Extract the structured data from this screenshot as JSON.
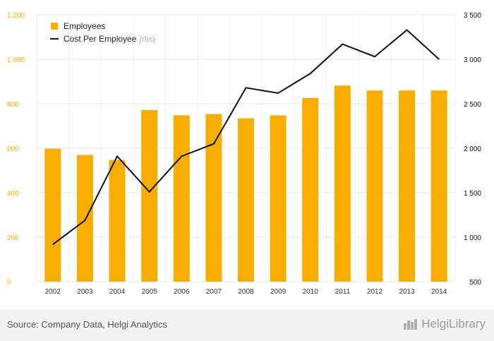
{
  "chart_data": {
    "type": "bar+line",
    "categories": [
      "2002",
      "2003",
      "2004",
      "2005",
      "2006",
      "2007",
      "2008",
      "2009",
      "2010",
      "2011",
      "2012",
      "2013",
      "2014"
    ],
    "series": [
      {
        "name": "Employees",
        "type": "bar",
        "axis": "left",
        "color": "#f8ae00",
        "values": [
          598,
          570,
          547,
          772,
          748,
          754,
          735,
          748,
          826,
          882,
          860,
          860,
          860
        ]
      },
      {
        "name": "Cost Per Employee",
        "name_suffix": "(rhs)",
        "type": "line",
        "axis": "right",
        "color": "#111111",
        "values": [
          918,
          1190,
          1910,
          1510,
          1910,
          2050,
          2680,
          2620,
          2840,
          3170,
          3030,
          3330,
          3000
        ]
      }
    ],
    "y_left": {
      "min": 0,
      "max": 1200,
      "ticks": [
        0,
        200,
        400,
        600,
        800,
        1000,
        1200
      ],
      "tick_labels": [
        "0",
        "200",
        "400",
        "600",
        "800",
        "1 000",
        "1 200"
      ],
      "color": "#f8ae00"
    },
    "y_right": {
      "min": 500,
      "max": 3500,
      "ticks": [
        500,
        1000,
        1500,
        2000,
        2500,
        3000,
        3500
      ],
      "tick_labels": [
        "500",
        "1 000",
        "1 500",
        "2 000",
        "2 500",
        "3 000",
        "3 500"
      ],
      "color": "#111111"
    },
    "grid": true,
    "legend_position": "top-left"
  },
  "footer": {
    "source": "Source: Company Data, Helgi Analytics",
    "brand": "HelgiLibrary",
    "brand_icon": "building-icon"
  }
}
